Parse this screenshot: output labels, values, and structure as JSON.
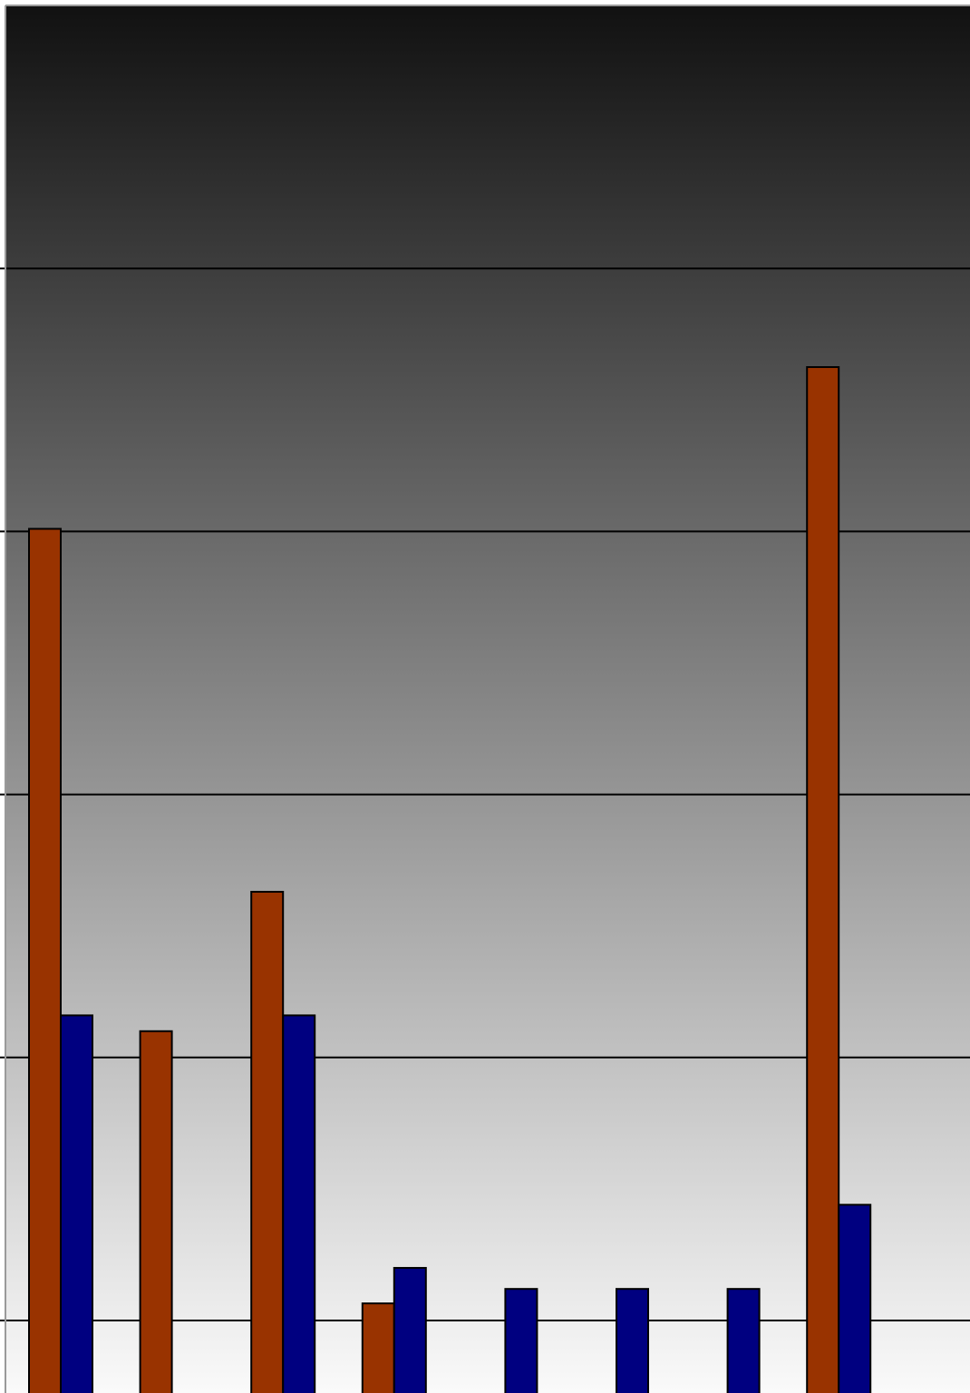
{
  "chart_data": {
    "type": "bar",
    "categories": [
      "",
      "",
      "",
      "",
      "",
      "",
      "",
      ""
    ],
    "series": [
      {
        "color": "#993300",
        "values": [
          3.01,
          1.1,
          1.63,
          0.065,
          null,
          null,
          null,
          3.625
        ]
      },
      {
        "color": "#000080",
        "values": [
          1.16,
          null,
          1.16,
          0.2,
          0.12,
          0.12,
          0.12,
          0.44
        ]
      }
    ],
    "ylim": [
      -0.27,
      5
    ],
    "gridlines": [
      0,
      1,
      2,
      3,
      4
    ],
    "grid": true,
    "background": {
      "gradient_top": "#111111",
      "gradient_bottom": "#fafafa"
    }
  }
}
